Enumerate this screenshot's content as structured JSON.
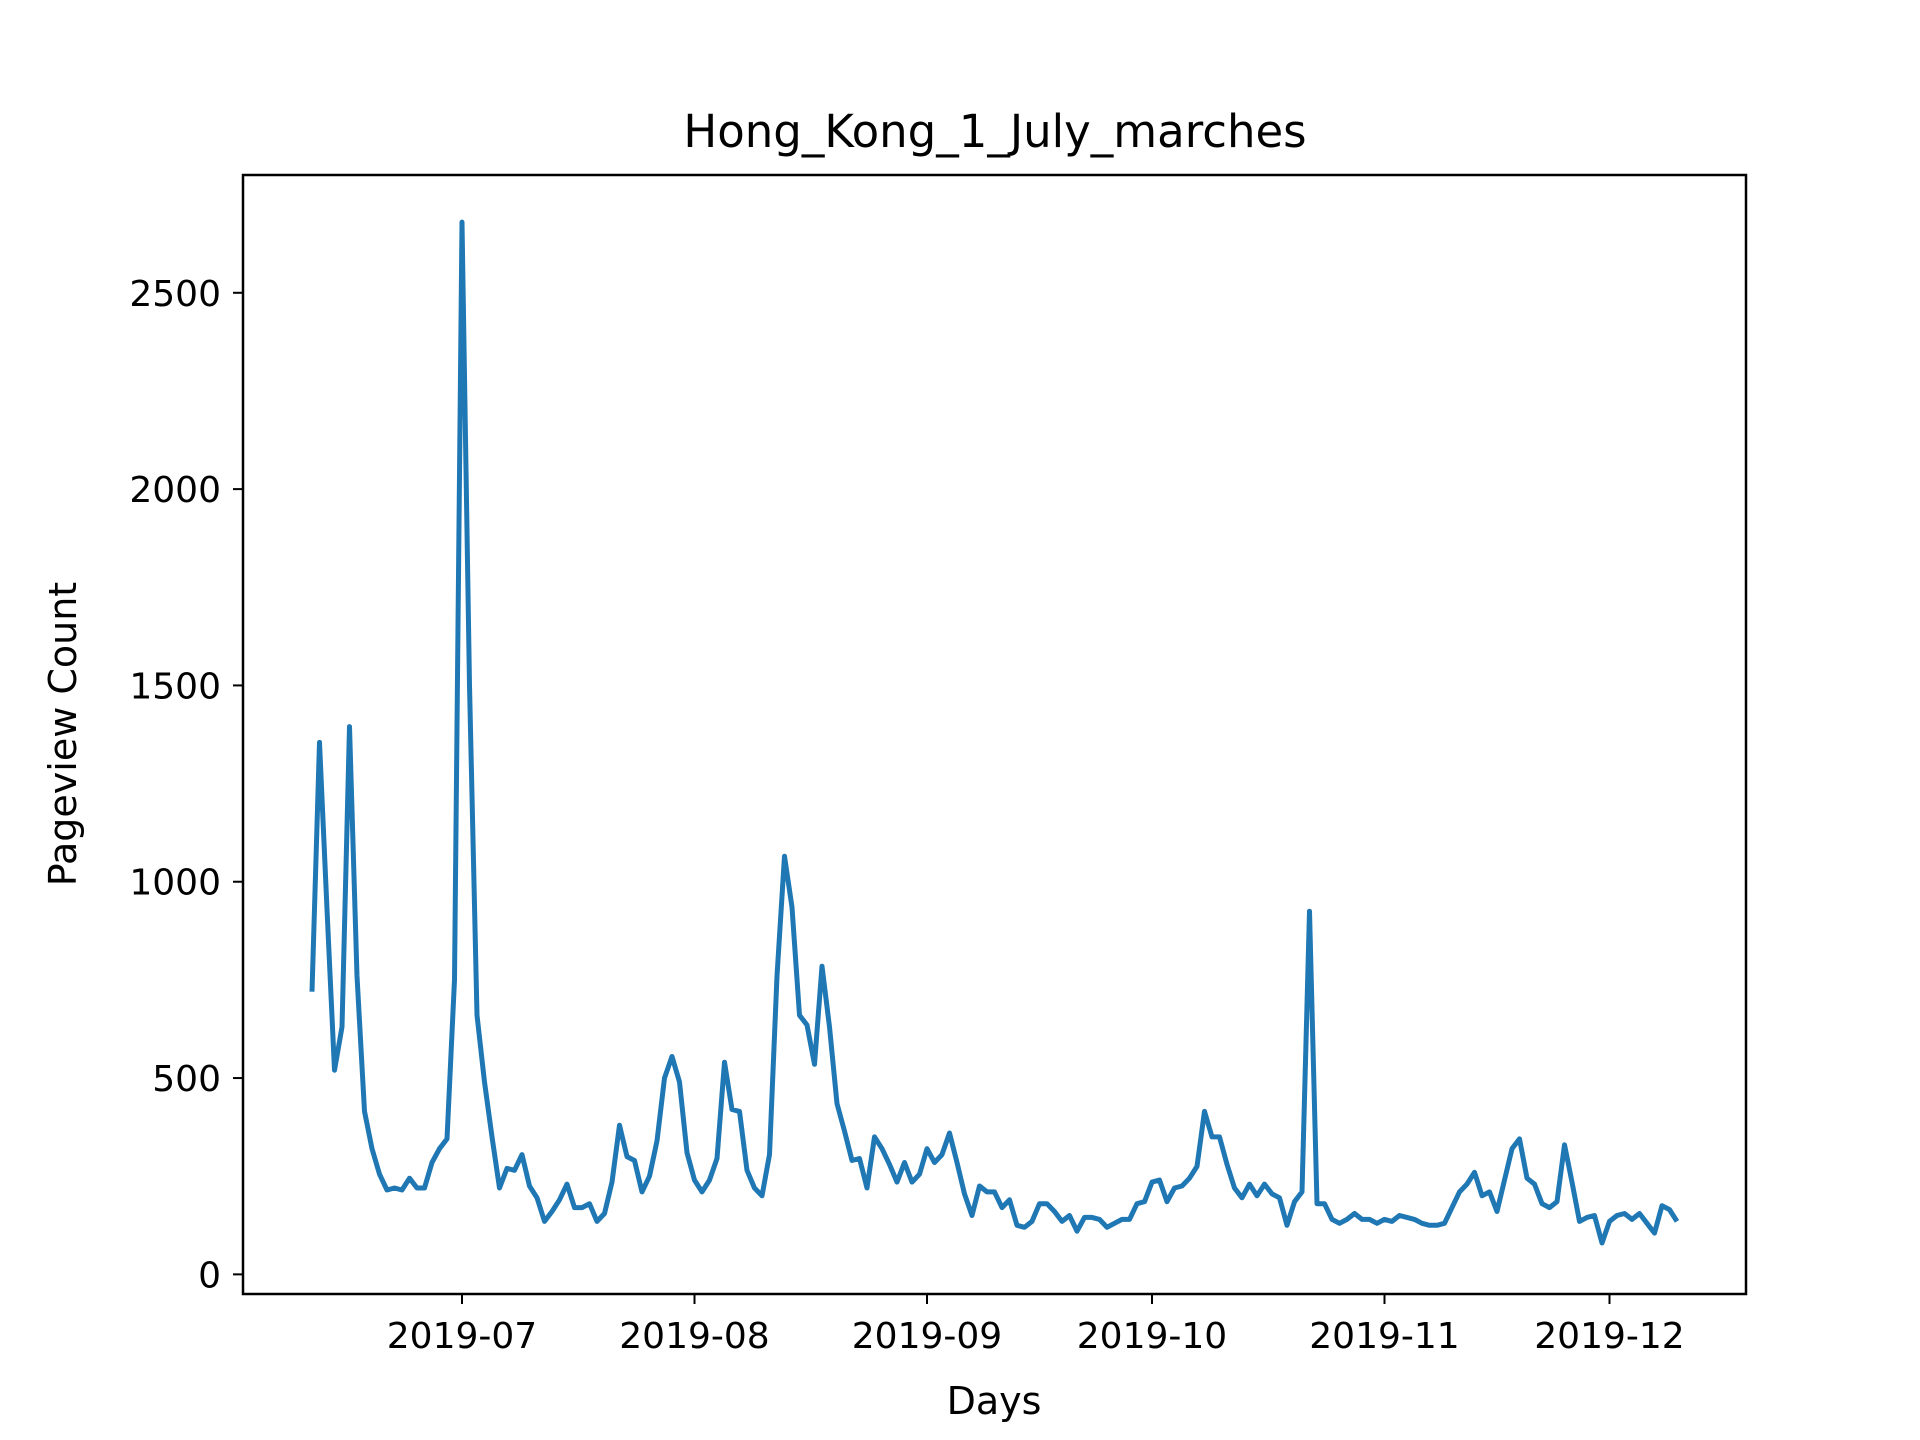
{
  "chart_data": {
    "type": "line",
    "title": "Hong_Kong_1_July_marches",
    "xlabel": "Days",
    "ylabel": "Pageview Count",
    "x_start": "2019-06-11",
    "x_ticks": [
      "2019-07",
      "2019-08",
      "2019-09",
      "2019-10",
      "2019-11",
      "2019-12"
    ],
    "y_ticks": [
      "0",
      "500",
      "1000",
      "1500",
      "2000",
      "2500"
    ],
    "ylim": [
      -50,
      2800
    ],
    "grid": false,
    "line_color": "#1f77b4",
    "series": [
      {
        "values": [
          720,
          1355,
          930,
          520,
          630,
          1395,
          760,
          415,
          320,
          255,
          215,
          220,
          215,
          245,
          220,
          220,
          285,
          320,
          345,
          750,
          2680,
          1500,
          660,
          490,
          350,
          220,
          270,
          265,
          305,
          225,
          195,
          135,
          160,
          190,
          230,
          170,
          170,
          180,
          135,
          155,
          235,
          380,
          300,
          290,
          210,
          250,
          340,
          500,
          555,
          490,
          310,
          240,
          210,
          240,
          295,
          540,
          420,
          415,
          265,
          220,
          200,
          305,
          760,
          1065,
          935,
          660,
          635,
          535,
          785,
          630,
          435,
          365,
          290,
          295,
          220,
          350,
          320,
          280,
          235,
          285,
          235,
          255,
          320,
          285,
          305,
          360,
          285,
          205,
          150,
          225,
          210,
          210,
          170,
          190,
          125,
          120,
          135,
          180,
          180,
          160,
          135,
          150,
          110,
          145,
          145,
          140,
          120,
          130,
          140,
          140,
          180,
          185,
          235,
          240,
          185,
          220,
          225,
          245,
          275,
          415,
          350,
          350,
          280,
          220,
          195,
          230,
          200,
          230,
          205,
          195,
          125,
          185,
          210,
          925,
          180,
          180,
          140,
          130,
          140,
          155,
          140,
          140,
          130,
          140,
          135,
          150,
          145,
          140,
          130,
          125,
          125,
          130,
          170,
          210,
          230,
          260,
          200,
          210,
          160,
          240,
          320,
          345,
          245,
          230,
          180,
          170,
          185,
          330,
          235,
          135,
          145,
          150,
          80,
          135,
          150,
          155,
          140,
          155,
          130,
          105,
          175,
          165,
          135
        ]
      }
    ]
  }
}
